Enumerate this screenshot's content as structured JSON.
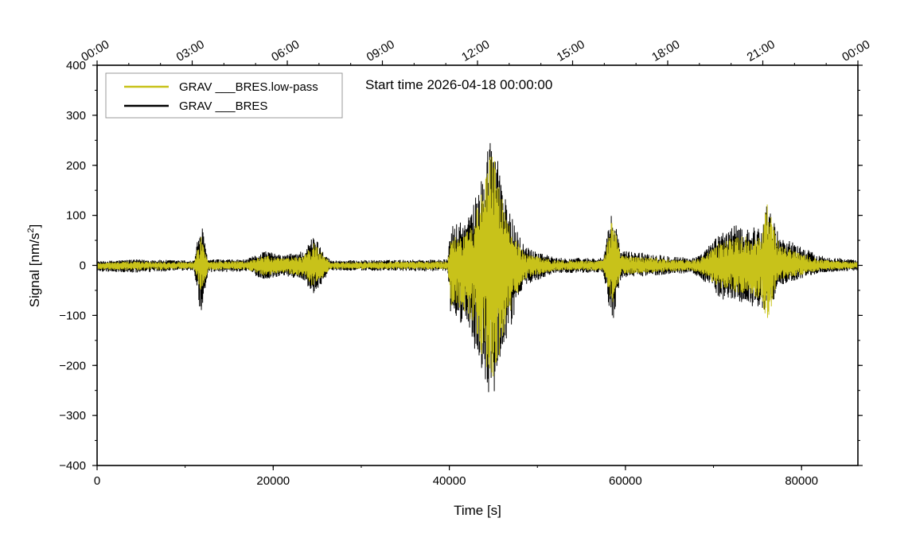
{
  "chart_data": {
    "type": "line",
    "annotation": "Start time 2026-04-18 00:00:00",
    "xlabel": "Time [s]",
    "ylabel_main": "Signal [nm/s",
    "ylabel_sup": "2",
    "ylabel_end": "]",
    "xlim": [
      0,
      86400
    ],
    "ylim": [
      -400,
      400
    ],
    "x_ticks": [
      0,
      20000,
      40000,
      60000,
      80000
    ],
    "x_tick_labels": [
      "0",
      "20000",
      "40000",
      "60000",
      "80000"
    ],
    "y_ticks": [
      -400,
      -300,
      -200,
      -100,
      0,
      100,
      200,
      300,
      400
    ],
    "y_tick_labels": [
      "−400",
      "−300",
      "−200",
      "−100",
      "0",
      "100",
      "200",
      "300",
      "400"
    ],
    "top_ticks": [
      0,
      10800,
      21600,
      32400,
      43200,
      54000,
      64800,
      75600,
      86400
    ],
    "top_tick_labels": [
      "00:00",
      "03:00",
      "06:00",
      "09:00",
      "12:00",
      "15:00",
      "18:00",
      "21:00",
      "00:00"
    ],
    "legend_position": "top-left",
    "grid": false,
    "series": [
      {
        "name": "GRAV ___BRES.low-pass",
        "color": "#c8c21a"
      },
      {
        "name": "GRAV ___BRES",
        "color": "#000000"
      }
    ],
    "envelope_black": {
      "x": [
        0,
        4000,
        11000,
        11800,
        12600,
        17000,
        19000,
        21000,
        23500,
        24600,
        26500,
        39800,
        40200,
        42000,
        43500,
        44600,
        45200,
        46500,
        48500,
        52000,
        57500,
        58500,
        59500,
        67500,
        68500,
        71000,
        72500,
        75500,
        76000,
        77500,
        82000,
        86400
      ],
      "pos": [
        8,
        12,
        10,
        90,
        12,
        12,
        30,
        20,
        30,
        60,
        10,
        12,
        80,
        90,
        160,
        265,
        250,
        120,
        40,
        15,
        15,
        115,
        30,
        15,
        20,
        70,
        80,
        75,
        125,
        60,
        20,
        10
      ],
      "neg": [
        -12,
        -15,
        -10,
        -102,
        -15,
        -12,
        -30,
        -20,
        -30,
        -60,
        -10,
        -12,
        -110,
        -120,
        -200,
        -280,
        -260,
        -150,
        -40,
        -15,
        -15,
        -120,
        -25,
        -15,
        -25,
        -70,
        -70,
        -90,
        -110,
        -40,
        -15,
        -10
      ]
    },
    "envelope_yellow": {
      "x": [
        0,
        4000,
        11000,
        11800,
        12600,
        17000,
        19000,
        21000,
        23500,
        24600,
        26500,
        39800,
        40200,
        42000,
        43500,
        44600,
        45200,
        46500,
        48500,
        52000,
        57500,
        58500,
        59500,
        67500,
        68500,
        71000,
        72500,
        75500,
        76000,
        77500,
        82000,
        86400
      ],
      "pos": [
        5,
        8,
        6,
        60,
        8,
        8,
        20,
        14,
        20,
        45,
        6,
        8,
        55,
        70,
        130,
        230,
        210,
        90,
        25,
        10,
        10,
        95,
        20,
        10,
        14,
        50,
        60,
        55,
        130,
        40,
        12,
        6
      ],
      "neg": [
        -8,
        -10,
        -7,
        -60,
        -9,
        -8,
        -22,
        -14,
        -22,
        -45,
        -7,
        -8,
        -80,
        -95,
        -170,
        -230,
        -220,
        -110,
        -28,
        -10,
        -10,
        -80,
        -18,
        -10,
        -16,
        -50,
        -55,
        -70,
        -115,
        -30,
        -10,
        -6
      ]
    }
  }
}
